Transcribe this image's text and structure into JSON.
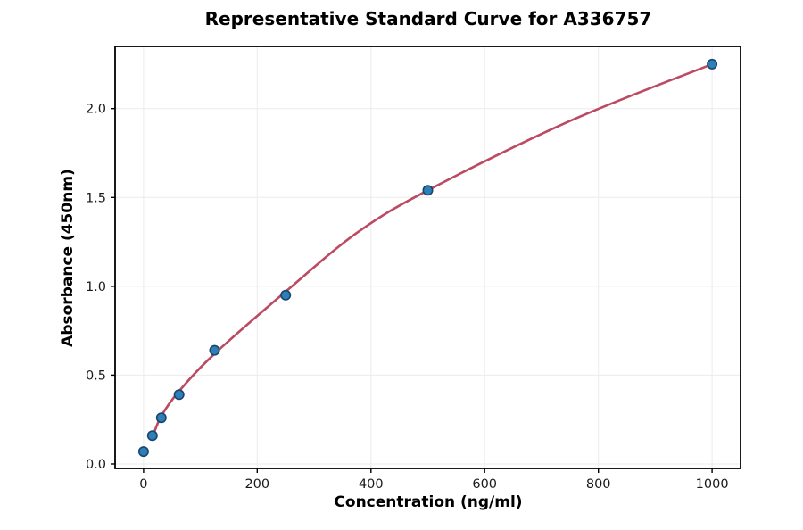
{
  "chart_data": {
    "type": "scatter",
    "title": "Representative Standard Curve for A336757",
    "xlabel": "Concentration (ng/ml)",
    "ylabel": "Absorbance (450nm)",
    "xlim": [
      -50,
      1050
    ],
    "ylim": [
      -0.025,
      2.35
    ],
    "grid": true,
    "legend": "none",
    "xticks": [
      {
        "value": 0,
        "label": "0"
      },
      {
        "value": 200,
        "label": "200"
      },
      {
        "value": 400,
        "label": "400"
      },
      {
        "value": 600,
        "label": "600"
      },
      {
        "value": 800,
        "label": "800"
      },
      {
        "value": 1000,
        "label": "1000"
      }
    ],
    "yticks": [
      {
        "value": 0,
        "label": "0.0"
      },
      {
        "value": 0.5,
        "label": "0.5"
      },
      {
        "value": 1,
        "label": "1.0"
      },
      {
        "value": 1.5,
        "label": "1.5"
      },
      {
        "value": 2,
        "label": "2.0"
      }
    ],
    "series": [
      {
        "name": "standard-points",
        "type": "scatter",
        "x": [
          0,
          15.6,
          31.25,
          62.5,
          125,
          250,
          500,
          1000
        ],
        "y": [
          0.07,
          0.16,
          0.26,
          0.39,
          0.64,
          0.95,
          1.54,
          2.25
        ],
        "marker_color": "#2e7eb8",
        "marker_edge_color": "#17466f"
      },
      {
        "name": "fitted-curve",
        "type": "line",
        "x": [
          15.6,
          31.25,
          62.5,
          125,
          250,
          375,
          500,
          750,
          1000
        ],
        "y": [
          0.15,
          0.27,
          0.41,
          0.62,
          0.97,
          1.3,
          1.54,
          1.93,
          2.25
        ],
        "color": "#bc4a63"
      }
    ],
    "colors": {
      "axis": "#000000",
      "grid": "#ebebeb",
      "tick_label": "#1a1a1a",
      "background": "#ffffff"
    }
  }
}
